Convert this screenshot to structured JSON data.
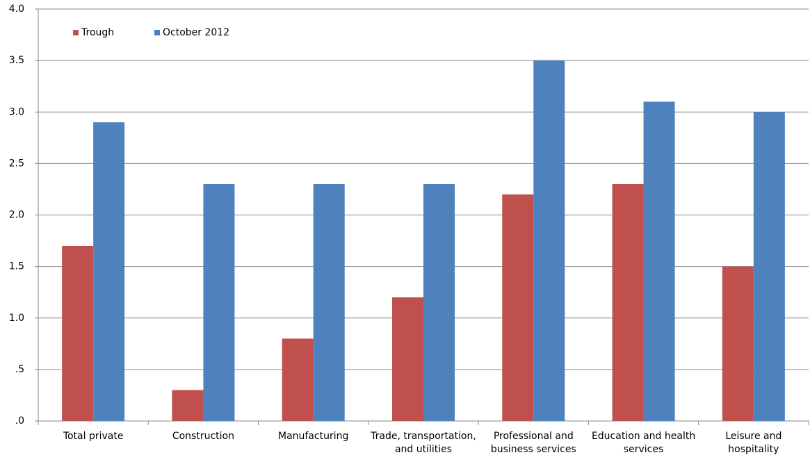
{
  "chart_data": {
    "type": "bar",
    "categories": [
      "Total private",
      "Construction",
      "Manufacturing",
      "Trade, transportation,\nand utilities",
      "Professional and\nbusiness services",
      "Education and health\nservices",
      "Leisure and\nhospitality"
    ],
    "series": [
      {
        "name": "Trough",
        "color": "#c0504d",
        "values": [
          1.7,
          0.3,
          0.8,
          1.2,
          2.2,
          2.3,
          1.5
        ]
      },
      {
        "name": "October 2012",
        "color": "#4f81bd",
        "values": [
          2.9,
          2.3,
          2.3,
          2.3,
          3.5,
          3.1,
          3.0
        ]
      }
    ],
    "ylim": [
      0,
      4
    ],
    "yticks": [
      {
        "value": 0,
        "label": ".0"
      },
      {
        "value": 0.5,
        "label": ".5"
      },
      {
        "value": 1,
        "label": "1.0"
      },
      {
        "value": 1.5,
        "label": "1.5"
      },
      {
        "value": 2,
        "label": "2.0"
      },
      {
        "value": 2.5,
        "label": "2.5"
      },
      {
        "value": 3,
        "label": "3.0"
      },
      {
        "value": 3.5,
        "label": "3.5"
      },
      {
        "value": 4,
        "label": "4.0"
      }
    ],
    "grid": true,
    "legend": "top-left"
  }
}
